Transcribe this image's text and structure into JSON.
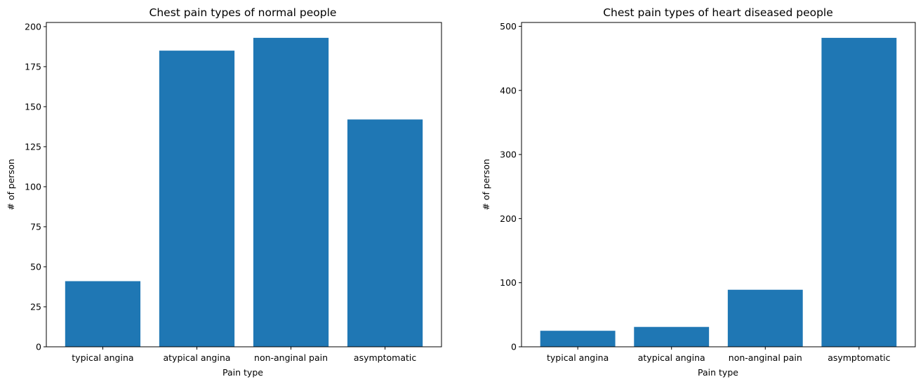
{
  "colors": {
    "bar": "#1f77b4",
    "axes": "#000000",
    "background": "#ffffff"
  },
  "chart_data": [
    {
      "type": "bar",
      "title": "Chest pain types of normal people",
      "xlabel": "Pain type",
      "ylabel": "# of person",
      "categories": [
        "typical angina",
        "atypical angina",
        "non-anginal pain",
        "asymptomatic"
      ],
      "values": [
        41,
        185,
        193,
        142
      ],
      "ylim": [
        0,
        202.6
      ],
      "yticks": [
        0,
        25,
        50,
        75,
        100,
        125,
        150,
        175,
        200
      ],
      "grid": false,
      "legend": "none"
    },
    {
      "type": "bar",
      "title": "Chest pain types of heart diseased people",
      "xlabel": "Pain type",
      "ylabel": "# of person",
      "categories": [
        "typical angina",
        "atypical angina",
        "non-anginal pain",
        "asymptomatic"
      ],
      "values": [
        25,
        31,
        89,
        482
      ],
      "ylim": [
        0,
        506
      ],
      "yticks": [
        0,
        100,
        200,
        300,
        400,
        500
      ],
      "grid": false,
      "legend": "none"
    }
  ]
}
